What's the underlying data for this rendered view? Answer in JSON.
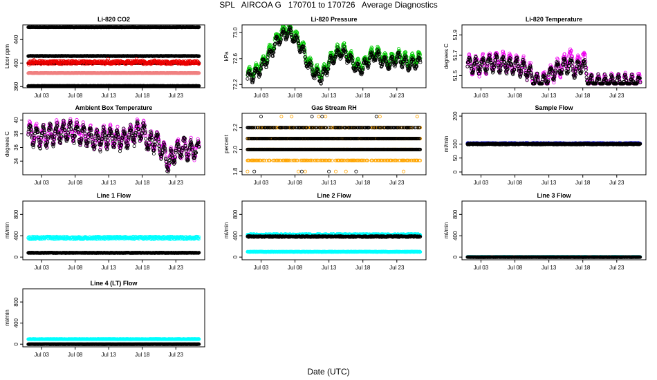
{
  "title": "SPL   AIRCOA G   170701 to 170726   Average Diagnostics",
  "xlabel": "Date (UTC)",
  "x_ticks": [
    "Jul 03",
    "Jul 08",
    "Jul 13",
    "Jul 18",
    "Jul 23"
  ],
  "x_tick_days": [
    3,
    8,
    13,
    18,
    23
  ],
  "x_range_days": [
    0.2,
    27.3
  ],
  "data_range_days": [
    1.0,
    26.5
  ],
  "colors": {
    "black": "#000000",
    "red": "#ee0000",
    "salmon": "#f08080",
    "green": "#00cc00",
    "magenta": "#ee00ee",
    "orange": "#ffa500",
    "blue": "#0000cc",
    "cyan": "#00ffff"
  },
  "chart_data": [
    {
      "id": "li820-co2",
      "type": "scatter",
      "title": "Li-820 CO2",
      "ylabel": "Licor ppm",
      "ylim": [
        358,
        465
      ],
      "y_ticks": [
        "360",
        "400",
        "440"
      ],
      "y_tick_values": [
        360,
        400,
        440
      ],
      "series": [
        {
          "name": "co2-high",
          "color": "black",
          "mode": "flat",
          "values": [
            461
          ]
        },
        {
          "name": "co2-upper",
          "color": "black",
          "mode": "flat",
          "values": [
            412
          ]
        },
        {
          "name": "co2-mid",
          "color": "black",
          "mode": "flat",
          "values": [
            400
          ]
        },
        {
          "name": "co2-ambient",
          "color": "red",
          "mode": "noisy",
          "mean": 401,
          "amp": 3,
          "spike": 10
        },
        {
          "name": "co2-ref",
          "color": "salmon",
          "mode": "flat",
          "values": [
            383
          ]
        },
        {
          "name": "co2-low",
          "color": "black",
          "mode": "flat",
          "values": [
            361
          ]
        }
      ]
    },
    {
      "id": "li820-pressure",
      "type": "scatter",
      "title": "Li-820 Pressure",
      "ylabel": "kPa",
      "ylim": [
        72.15,
        73.12
      ],
      "y_ticks": [
        "72.2",
        "72.6",
        "73.0"
      ],
      "y_tick_values": [
        72.2,
        72.6,
        73.0
      ],
      "knots_x": [
        1,
        2,
        3,
        4,
        5,
        6,
        7,
        8,
        9,
        10,
        11,
        12,
        13,
        14,
        15,
        16,
        17,
        18,
        19,
        20,
        21,
        22,
        23,
        24,
        25,
        26,
        26.5
      ],
      "series": [
        {
          "name": "pressure-green",
          "color": "green",
          "mode": "curve",
          "offset": 0.06,
          "diurnal": 0.08,
          "values": [
            72.3,
            72.35,
            72.45,
            72.6,
            72.8,
            72.95,
            73.0,
            72.9,
            72.75,
            72.5,
            72.35,
            72.3,
            72.5,
            72.65,
            72.7,
            72.6,
            72.45,
            72.45,
            72.6,
            72.65,
            72.55,
            72.5,
            72.6,
            72.55,
            72.5,
            72.55,
            72.55
          ]
        },
        {
          "name": "pressure-black",
          "color": "black",
          "mode": "curve",
          "offset": 0.0,
          "diurnal": 0.08,
          "values": [
            72.3,
            72.35,
            72.45,
            72.6,
            72.8,
            72.95,
            73.0,
            72.9,
            72.75,
            72.5,
            72.35,
            72.3,
            72.5,
            72.65,
            72.7,
            72.6,
            72.45,
            72.45,
            72.6,
            72.65,
            72.55,
            72.5,
            72.6,
            72.55,
            72.5,
            72.55,
            72.55
          ]
        }
      ]
    },
    {
      "id": "li820-temperature",
      "type": "scatter",
      "title": "Li-820 Temperature",
      "ylabel": "degrees C",
      "ylim": [
        51.38,
        52.0
      ],
      "y_ticks": [
        "51.5",
        "51.7",
        "51.9"
      ],
      "y_tick_values": [
        51.5,
        51.7,
        51.9
      ],
      "knots_x": [
        1,
        3,
        5,
        7,
        9,
        10,
        11,
        12,
        13,
        14,
        15,
        16,
        17,
        18,
        19,
        20,
        22,
        24,
        26.5
      ],
      "series": [
        {
          "name": "temp-magenta",
          "color": "magenta",
          "mode": "curve",
          "offset": 0.0,
          "diurnal": 0.08,
          "floor": 51.42,
          "values": [
            51.6,
            51.6,
            51.65,
            51.62,
            51.6,
            51.55,
            51.45,
            51.42,
            51.5,
            51.55,
            51.6,
            51.7,
            51.55,
            51.7,
            51.42,
            51.42,
            51.42,
            51.42,
            51.42
          ]
        },
        {
          "name": "temp-black",
          "color": "black",
          "mode": "curve",
          "offset": 0.0,
          "diurnal": 0.07,
          "floor": 51.42,
          "values": [
            51.6,
            51.6,
            51.63,
            51.6,
            51.58,
            51.53,
            51.45,
            51.42,
            51.5,
            51.55,
            51.58,
            51.6,
            51.55,
            51.62,
            51.42,
            51.42,
            51.42,
            51.42,
            51.42
          ]
        }
      ]
    },
    {
      "id": "ambient-box-temperature",
      "type": "scatter",
      "title": "Ambient Box Temperature",
      "ylabel": "degrees C",
      "ylim": [
        32.0,
        41.0
      ],
      "y_ticks": [
        "34",
        "36",
        "38",
        "40"
      ],
      "y_tick_values": [
        34,
        36,
        38,
        40
      ],
      "knots_x": [
        1,
        3,
        5,
        7,
        9,
        11,
        13,
        15,
        17,
        18,
        19,
        20,
        21,
        22,
        23,
        24,
        25,
        26.5
      ],
      "series": [
        {
          "name": "box-temp-magenta",
          "color": "magenta",
          "mode": "curve",
          "offset": 0.2,
          "diurnal": 1.3,
          "values": [
            38,
            37.5,
            38,
            38.3,
            38,
            37,
            37.5,
            37,
            38,
            38.5,
            36.5,
            37,
            35.5,
            33.5,
            35.5,
            36,
            35.5,
            35.5
          ]
        },
        {
          "name": "box-temp-black",
          "color": "black",
          "mode": "curve",
          "offset": 0.0,
          "diurnal": 1.3,
          "values": [
            38,
            37.5,
            38,
            38.3,
            38,
            37,
            37.5,
            37,
            38,
            38.5,
            36.5,
            37,
            35.5,
            33.5,
            35.5,
            36,
            35.5,
            35.5
          ]
        }
      ]
    },
    {
      "id": "gas-stream-rh",
      "type": "scatter",
      "title": "Gas Stream RH",
      "ylabel": "percent",
      "ylim": [
        1.77,
        2.33
      ],
      "y_ticks": [
        "1.8",
        "2.0",
        "2.2"
      ],
      "y_tick_values": [
        1.8,
        2.0,
        2.2
      ],
      "series": [
        {
          "name": "rh-orange",
          "color": "orange",
          "mode": "levels",
          "values": [
            1.9,
            2.0,
            2.1,
            2.2
          ],
          "density": [
            0.6,
            0.6,
            0.8,
            0.4
          ],
          "outliers": [
            2.3,
            1.8
          ]
        },
        {
          "name": "rh-black",
          "color": "black",
          "mode": "levels",
          "values": [
            2.0,
            2.1,
            2.2
          ],
          "density": [
            1.0,
            0.9,
            0.5
          ],
          "outliers": [
            2.3,
            1.8
          ]
        }
      ]
    },
    {
      "id": "sample-flow",
      "type": "scatter",
      "title": "Sample Flow",
      "ylabel": "ml/min",
      "ylim": [
        -10,
        210
      ],
      "y_ticks": [
        "0",
        "50",
        "100",
        "200"
      ],
      "y_tick_values": [
        0,
        50,
        100,
        200
      ],
      "series": [
        {
          "name": "sample-flow-blue",
          "color": "blue",
          "mode": "noisy",
          "mean": 102,
          "amp": 2,
          "spike": 0
        },
        {
          "name": "sample-flow-black",
          "color": "black",
          "mode": "noisy",
          "mean": 100,
          "amp": 2,
          "spike": 0
        }
      ]
    },
    {
      "id": "line-1-flow",
      "type": "scatter",
      "title": "Line 1 Flow",
      "ylabel": "ml/min",
      "ylim": [
        -50,
        1050
      ],
      "y_ticks": [
        "0",
        "400",
        "800"
      ],
      "y_tick_values": [
        0,
        400,
        800
      ],
      "series": [
        {
          "name": "line1-cyan",
          "color": "cyan",
          "mode": "noisy",
          "mean": 360,
          "amp": 25,
          "spike": 0
        },
        {
          "name": "line1-black",
          "color": "black",
          "mode": "noisy",
          "mean": 80,
          "amp": 5,
          "spike": 0
        }
      ]
    },
    {
      "id": "line-2-flow",
      "type": "scatter",
      "title": "Line 2 Flow",
      "ylabel": "ml/min",
      "ylim": [
        -50,
        1050
      ],
      "y_ticks": [
        "0",
        "400",
        "800"
      ],
      "y_tick_values": [
        0,
        400,
        800
      ],
      "series": [
        {
          "name": "line2-cyan-upper",
          "color": "cyan",
          "mode": "noisy",
          "mean": 420,
          "amp": 15,
          "spike": 0
        },
        {
          "name": "line2-cyan-lower",
          "color": "cyan",
          "mode": "noisy",
          "mean": 100,
          "amp": 5,
          "spike": 0
        },
        {
          "name": "line2-black",
          "color": "black",
          "mode": "noisy",
          "mean": 385,
          "amp": 10,
          "spike": 0
        }
      ]
    },
    {
      "id": "line-3-flow",
      "type": "scatter",
      "title": "Line 3 Flow",
      "ylabel": "ml/min",
      "ylim": [
        -50,
        1050
      ],
      "y_ticks": [
        "0",
        "400",
        "800"
      ],
      "y_tick_values": [
        0,
        400,
        800
      ],
      "series": [
        {
          "name": "line3-cyan",
          "color": "cyan",
          "mode": "noisy",
          "mean": 3,
          "amp": 3,
          "spike": 0
        },
        {
          "name": "line3-black",
          "color": "black",
          "mode": "noisy",
          "mean": 0,
          "amp": 2,
          "spike": 0
        }
      ]
    },
    {
      "id": "line-4-lt-flow",
      "type": "scatter",
      "title": "Line 4 (LT) Flow",
      "ylabel": "ml/min",
      "ylim": [
        -50,
        1050
      ],
      "y_ticks": [
        "0",
        "400",
        "800"
      ],
      "y_tick_values": [
        0,
        400,
        800
      ],
      "series": [
        {
          "name": "line4-cyan",
          "color": "cyan",
          "mode": "noisy",
          "mean": 95,
          "amp": 3,
          "spike": 0
        },
        {
          "name": "line4-black",
          "color": "black",
          "mode": "noisy",
          "mean": 0,
          "amp": 2,
          "spike": 0
        }
      ]
    }
  ]
}
